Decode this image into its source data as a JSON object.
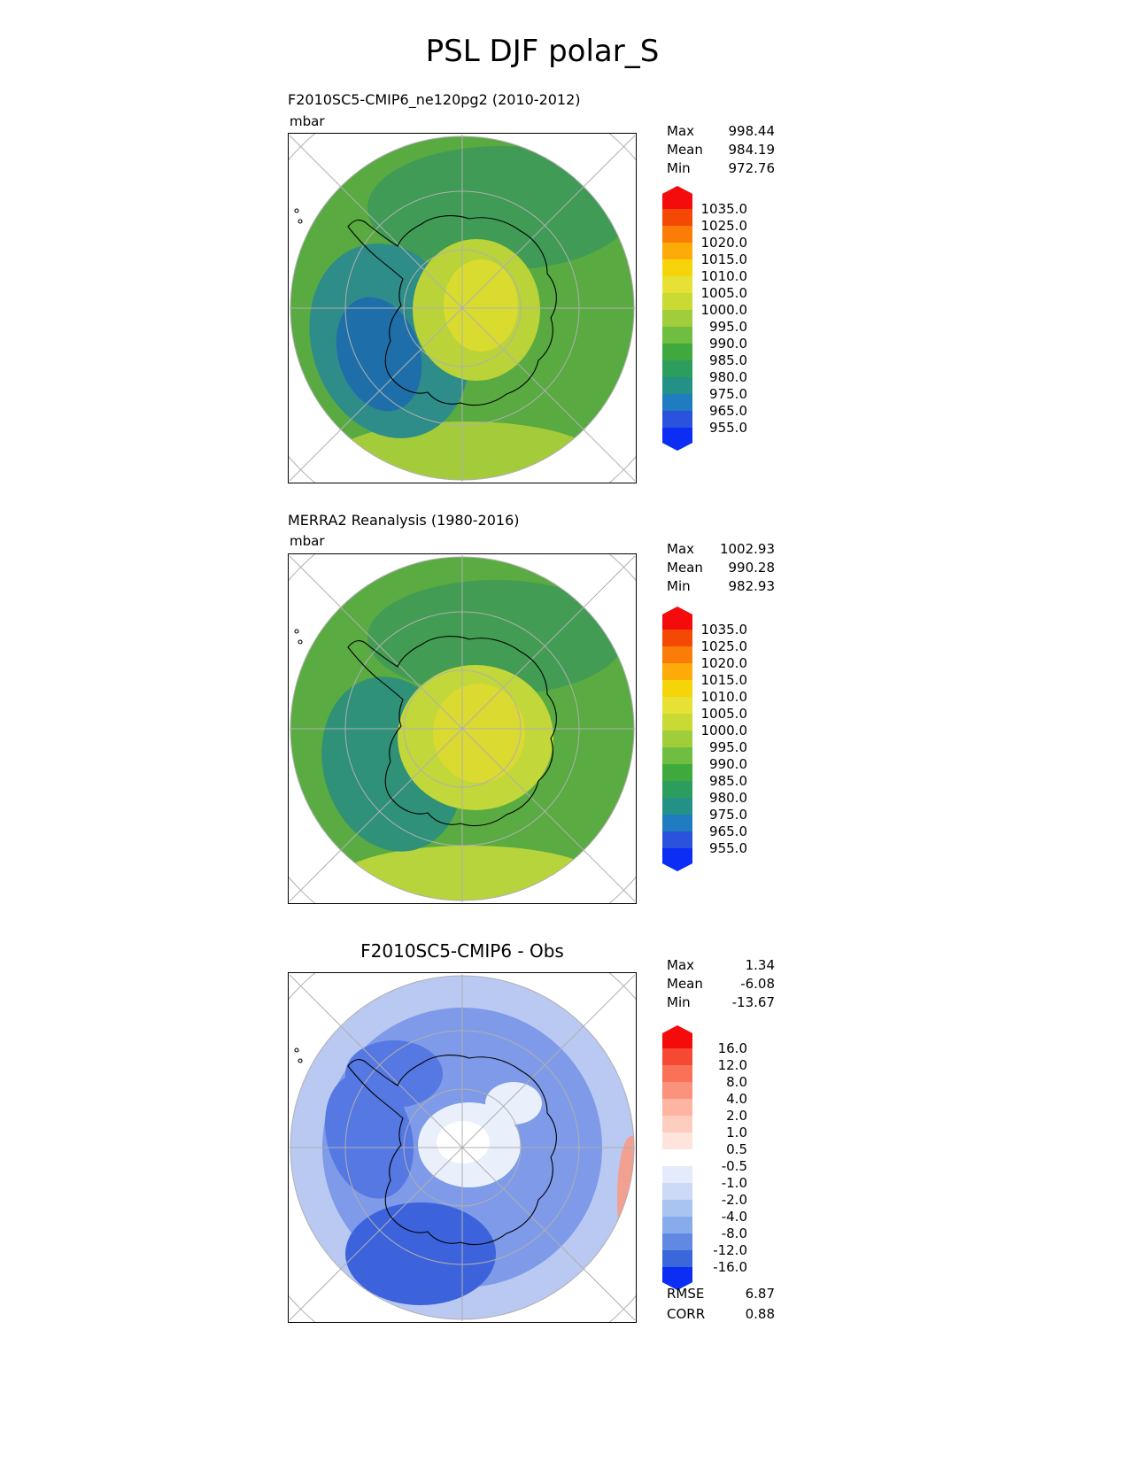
{
  "page": {
    "title": "PSL DJF polar_S"
  },
  "panels": [
    {
      "title": "F2010SC5-CMIP6_ne120pg2 (2010-2012)",
      "units": "mbar",
      "stats": [
        {
          "label": "Max",
          "value": "998.44"
        },
        {
          "label": "Mean",
          "value": "984.19"
        },
        {
          "label": "Min",
          "value": "972.76"
        }
      ],
      "colorbar": {
        "labels": [
          "1035.0",
          "1025.0",
          "1020.0",
          "1015.0",
          "1010.0",
          "1005.0",
          "1000.0",
          "995.0",
          "990.0",
          "985.0",
          "980.0",
          "975.0",
          "965.0",
          "955.0"
        ],
        "colors": [
          "#f44905",
          "#fb7d07",
          "#fcab08",
          "#f5d50a",
          "#e8e135",
          "#c8da33",
          "#a0cd3a",
          "#6fbe41",
          "#3fa93e",
          "#2d9d5e",
          "#249187",
          "#1f7cc1",
          "#2a52dd"
        ],
        "arrow_top": "#f40b0b",
        "arrow_bottom": "#0b2df4"
      },
      "map": {
        "base": "#58aa41",
        "upper": "#3f9b55",
        "teal": "#2e8c89",
        "teal_core": "#1e6fa9",
        "mid": "#b9d338",
        "core": "#d9dc2f",
        "bottom": "#a4cc3a",
        "coast": "#000000",
        "graticule": "#b0b0b0"
      }
    },
    {
      "title": "MERRA2 Reanalysis (1980-2016)",
      "units": "mbar",
      "stats": [
        {
          "label": "Max",
          "value": "1002.93"
        },
        {
          "label": "Mean",
          "value": "990.28"
        },
        {
          "label": "Min",
          "value": "982.93"
        }
      ],
      "colorbar": {
        "labels": [
          "1035.0",
          "1025.0",
          "1020.0",
          "1015.0",
          "1010.0",
          "1005.0",
          "1000.0",
          "995.0",
          "990.0",
          "985.0",
          "980.0",
          "975.0",
          "965.0",
          "955.0"
        ],
        "colors": [
          "#f44905",
          "#fb7d07",
          "#fcab08",
          "#f5d50a",
          "#e8e135",
          "#c8da33",
          "#a0cd3a",
          "#6fbe41",
          "#3fa93e",
          "#2d9d5e",
          "#249187",
          "#1f7cc1",
          "#2a52dd"
        ],
        "arrow_top": "#f40b0b",
        "arrow_bottom": "#0b2df4"
      },
      "map": {
        "base": "#5aab42",
        "upper": "#429c53",
        "teal": "#2e9178",
        "mid": "#c2d73a",
        "core": "#dbda30",
        "bottom": "#b7d43c",
        "coast": "#000000",
        "graticule": "#b0b0b0"
      }
    },
    {
      "title": "F2010SC5-CMIP6 - Obs",
      "stats": [
        {
          "label": "Max",
          "value": "1.34"
        },
        {
          "label": "Mean",
          "value": "-6.08"
        },
        {
          "label": "Min",
          "value": "-13.67"
        }
      ],
      "colorbar": {
        "labels": [
          "16.0",
          "12.0",
          "8.0",
          "4.0",
          "2.0",
          "1.0",
          "0.5",
          "-0.5",
          "-1.0",
          "-2.0",
          "-4.0",
          "-8.0",
          "-12.0",
          "-16.0"
        ],
        "colors": [
          "#f64934",
          "#f97258",
          "#fb937c",
          "#fdb5a2",
          "#fdcdc0",
          "#fee5dc",
          "#ffffff",
          "#e4ecfb",
          "#ccd9f7",
          "#aac4f1",
          "#88abeb",
          "#6189e3",
          "#3a67da"
        ],
        "arrow_top": "#f40b0b",
        "arrow_bottom": "#0b2df4"
      },
      "footer": [
        {
          "label": "RMSE",
          "value": "6.87"
        },
        {
          "label": "CORR",
          "value": "0.88"
        }
      ],
      "map": {
        "outer": "#b9c9f2",
        "base": "#7e9ae8",
        "deep": "#3c63dc",
        "deep2": "#5578e2",
        "pale": "#e9effb",
        "white": "#ffffff",
        "red": "#f2a08f",
        "coast": "#000000",
        "graticule": "#b0b0b0"
      }
    }
  ],
  "chart_data": [
    {
      "type": "contour_map",
      "figure_title": "PSL DJF polar_S",
      "title": "F2010SC5-CMIP6_ne120pg2 (2010-2012)",
      "variable": "PSL",
      "season": "DJF",
      "projection": "south polar stereographic (polar_S)",
      "units": "mbar",
      "stats": {
        "max": 998.44,
        "mean": 984.19,
        "min": 972.76
      },
      "contour_levels": [
        955.0,
        965.0,
        975.0,
        980.0,
        985.0,
        990.0,
        995.0,
        1000.0,
        1005.0,
        1010.0,
        1015.0,
        1020.0,
        1025.0,
        1035.0
      ],
      "legend_position": "right"
    },
    {
      "type": "contour_map",
      "figure_title": "PSL DJF polar_S",
      "title": "MERRA2 Reanalysis (1980-2016)",
      "variable": "PSL",
      "season": "DJF",
      "projection": "south polar stereographic (polar_S)",
      "units": "mbar",
      "stats": {
        "max": 1002.93,
        "mean": 990.28,
        "min": 982.93
      },
      "contour_levels": [
        955.0,
        965.0,
        975.0,
        980.0,
        985.0,
        990.0,
        995.0,
        1000.0,
        1005.0,
        1010.0,
        1015.0,
        1020.0,
        1025.0,
        1035.0
      ],
      "legend_position": "right"
    },
    {
      "type": "contour_map",
      "figure_title": "PSL DJF polar_S",
      "title": "F2010SC5-CMIP6 - Obs",
      "variable": "PSL difference (model minus observations)",
      "season": "DJF",
      "projection": "south polar stereographic (polar_S)",
      "stats": {
        "max": 1.34,
        "mean": -6.08,
        "min": -13.67
      },
      "contour_levels": [
        -16.0,
        -12.0,
        -8.0,
        -4.0,
        -2.0,
        -1.0,
        -0.5,
        0.5,
        1.0,
        2.0,
        4.0,
        8.0,
        12.0,
        16.0
      ],
      "rmse": 6.87,
      "corr": 0.88,
      "legend_position": "right"
    }
  ]
}
